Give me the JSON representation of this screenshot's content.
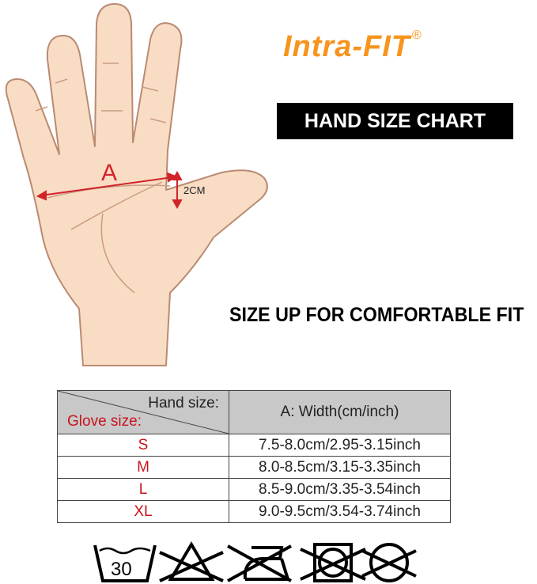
{
  "brand": {
    "name": "Intra-FIT",
    "registered": "®",
    "color": "#f7941d"
  },
  "title": "HAND SIZE CHART",
  "illustration": {
    "measure_label": "A",
    "offset_label": "2CM",
    "arrow_color": "#d2232a"
  },
  "tagline": "SIZE UP FOR COMFORTABLE FIT",
  "size_table": {
    "header_row_label": "Hand size:",
    "header_col_label": "Glove size:",
    "header_value": "A: Width(cm/inch)",
    "rows": [
      {
        "size": "S",
        "width": "7.5-8.0cm/2.95-3.15inch"
      },
      {
        "size": "M",
        "width": "8.0-8.5cm/3.15-3.35inch"
      },
      {
        "size": "L",
        "width": "8.5-9.0cm/3.35-3.54inch"
      },
      {
        "size": "XL",
        "width": "9.0-9.5cm/3.54-3.74inch"
      }
    ]
  },
  "care_icons": {
    "wash_temp": "30",
    "icons": [
      "wash-30-icon",
      "no-bleach-icon",
      "no-iron-icon",
      "no-tumble-dry-icon",
      "no-dry-clean-icon"
    ]
  }
}
